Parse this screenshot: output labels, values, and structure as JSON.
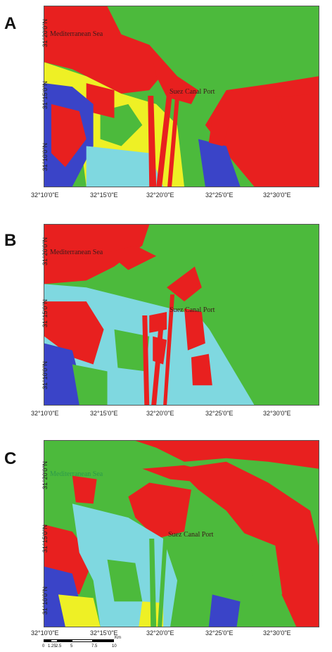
{
  "panels": [
    {
      "letter": "A",
      "sea_label": "Mediterranean Sea",
      "port_label": "Suez Canal Port",
      "lat_labels": [
        "31°20'0\"N",
        "31°15'0\"N",
        "31°10'0\"N"
      ],
      "lon_labels": [
        "32°10'0\"E",
        "32°15'0\"E",
        "32°20'0\"E",
        "32°25'0\"E",
        "32°30'0\"E"
      ]
    },
    {
      "letter": "B",
      "sea_label": "Mediterranean Sea",
      "port_label": "Suez Canal Port",
      "lat_labels": [
        "31°20'0\"N",
        "31°15'0\"N",
        "31°10'0\"N"
      ],
      "lon_labels": [
        "32°10'0\"E",
        "32°15'0\"E",
        "32°20'0\"E",
        "32°25'0\"E",
        "32°30'0\"E"
      ]
    },
    {
      "letter": "C",
      "sea_label": "Mediterranean Sea",
      "port_label": "Suez Canal Port",
      "lat_labels": [
        "31°20'0\"N",
        "31°15'0\"N",
        "31°10'0\"N"
      ],
      "lon_labels": [
        "32°10'0\"E",
        "32°15'0\"E",
        "32°20'0\"E",
        "32°25'0\"E",
        "32°30'0\"E"
      ]
    }
  ],
  "scale_bar": {
    "unit": "Km",
    "ticks": [
      "0",
      "1.25",
      "2.5",
      "5",
      "7.5",
      "10"
    ]
  },
  "colors": {
    "red": "#e8201f",
    "green": "#4cba3c",
    "yellow": "#eef025",
    "cyan": "#7fd8e0",
    "blue": "#3a44c8",
    "label_dark": "#3b1a1a",
    "label_green": "#2c9a4a"
  },
  "icons": [
    "north-arrow-icon"
  ]
}
